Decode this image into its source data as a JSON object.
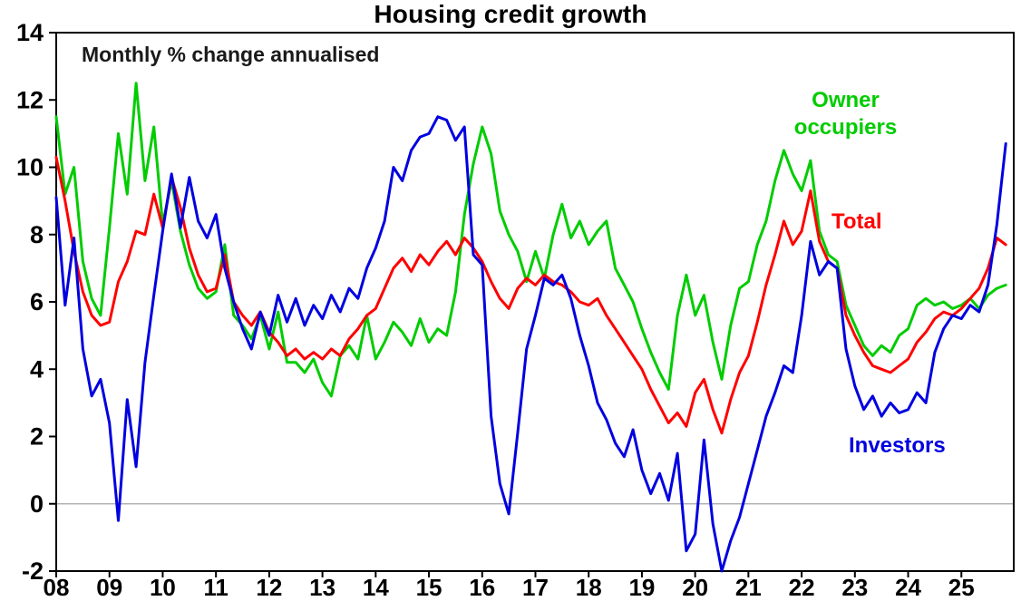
{
  "chart_data": {
    "type": "line",
    "title": "Housing credit growth",
    "subtitle": "Monthly % change annualised",
    "x_axis": {
      "start_year": 2008,
      "points_per_year": 6,
      "tick_labels": [
        "08",
        "09",
        "10",
        "11",
        "12",
        "13",
        "14",
        "15",
        "16",
        "17",
        "18",
        "19",
        "20",
        "21",
        "22",
        "23",
        "24",
        "25"
      ]
    },
    "y_axis": {
      "min": -2,
      "max": 14,
      "tick_step": 2,
      "tick_labels": [
        "-2",
        "0",
        "2",
        "4",
        "6",
        "8",
        "10",
        "12",
        "14"
      ]
    },
    "gridline_value": 0,
    "grid": "zero-line-only",
    "legend_position": "annotations-on-plot",
    "series": [
      {
        "name": "Owner occupiers",
        "color": "#00cc00",
        "values": [
          11.5,
          9.2,
          10.0,
          7.2,
          6.1,
          5.6,
          8.2,
          11.0,
          9.2,
          12.5,
          9.6,
          11.2,
          8.3,
          9.6,
          8.1,
          7.1,
          6.4,
          6.1,
          6.3,
          7.7,
          5.6,
          5.3,
          4.9,
          5.6,
          4.6,
          5.7,
          4.2,
          4.2,
          3.9,
          4.3,
          3.6,
          3.2,
          4.4,
          4.7,
          4.3,
          5.6,
          4.3,
          4.8,
          5.4,
          5.1,
          4.7,
          5.5,
          4.8,
          5.2,
          5.0,
          6.3,
          8.6,
          10.1,
          11.2,
          10.4,
          8.7,
          8.0,
          7.5,
          6.6,
          7.5,
          6.7,
          8.0,
          8.9,
          7.9,
          8.4,
          7.7,
          8.1,
          8.4,
          7.0,
          6.5,
          6.0,
          5.2,
          4.5,
          3.9,
          3.4,
          5.6,
          6.8,
          5.6,
          6.2,
          4.8,
          3.7,
          5.3,
          6.4,
          6.6,
          7.7,
          8.4,
          9.6,
          10.5,
          9.8,
          9.3,
          10.2,
          8.1,
          7.4,
          7.2,
          5.9,
          5.3,
          4.7,
          4.4,
          4.7,
          4.5,
          5.0,
          5.2,
          5.9,
          6.1,
          5.9,
          6.0,
          5.8,
          5.9,
          6.1,
          5.8,
          6.2,
          6.4,
          6.5
        ]
      },
      {
        "name": "Total",
        "color": "#ff0000",
        "values": [
          10.3,
          9.0,
          7.5,
          6.3,
          5.6,
          5.3,
          5.4,
          6.6,
          7.2,
          8.1,
          8.0,
          9.2,
          8.2,
          9.7,
          8.8,
          7.6,
          6.8,
          6.3,
          6.4,
          7.4,
          6.0,
          5.6,
          5.3,
          5.7,
          5.1,
          4.8,
          4.4,
          4.6,
          4.3,
          4.5,
          4.3,
          4.6,
          4.4,
          4.9,
          5.2,
          5.6,
          5.8,
          6.4,
          7.0,
          7.3,
          6.9,
          7.4,
          7.1,
          7.5,
          7.8,
          7.4,
          7.9,
          7.6,
          7.2,
          6.6,
          6.1,
          5.8,
          6.4,
          6.7,
          6.5,
          6.8,
          6.6,
          6.5,
          6.3,
          6.0,
          5.9,
          6.1,
          5.6,
          5.2,
          4.8,
          4.4,
          4.0,
          3.4,
          2.9,
          2.4,
          2.7,
          2.3,
          3.3,
          3.7,
          2.8,
          2.1,
          3.1,
          3.9,
          4.4,
          5.4,
          6.5,
          7.4,
          8.4,
          7.7,
          8.1,
          9.3,
          7.8,
          7.2,
          7.0,
          5.6,
          5.0,
          4.5,
          4.1,
          4.0,
          3.9,
          4.1,
          4.3,
          4.8,
          5.1,
          5.5,
          5.7,
          5.6,
          5.8,
          6.1,
          6.4,
          7.0,
          7.9,
          7.7
        ]
      },
      {
        "name": "Investors",
        "color": "#0000e0",
        "values": [
          9.1,
          5.9,
          7.9,
          4.6,
          3.2,
          3.7,
          2.4,
          -0.5,
          3.1,
          1.1,
          4.2,
          6.2,
          8.1,
          9.8,
          8.2,
          9.7,
          8.4,
          7.9,
          8.6,
          7.0,
          6.0,
          5.2,
          4.6,
          5.7,
          5.0,
          6.2,
          5.4,
          6.1,
          5.3,
          5.9,
          5.5,
          6.2,
          5.7,
          6.4,
          6.1,
          7.0,
          7.6,
          8.4,
          10.0,
          9.6,
          10.5,
          10.9,
          11.0,
          11.5,
          11.4,
          10.8,
          11.2,
          7.4,
          7.1,
          2.6,
          0.6,
          -0.3,
          2.1,
          4.6,
          5.6,
          6.7,
          6.5,
          6.8,
          6.1,
          5.0,
          4.1,
          3.0,
          2.5,
          1.8,
          1.4,
          2.2,
          1.0,
          0.3,
          0.9,
          0.1,
          1.5,
          -1.4,
          -0.9,
          1.9,
          -0.6,
          -2.0,
          -1.1,
          -0.4,
          0.6,
          1.6,
          2.6,
          3.3,
          4.1,
          3.9,
          5.6,
          7.8,
          6.8,
          7.2,
          7.0,
          4.6,
          3.5,
          2.8,
          3.2,
          2.6,
          3.0,
          2.7,
          2.8,
          3.3,
          3.0,
          4.5,
          5.2,
          5.6,
          5.5,
          5.9,
          5.7,
          6.5,
          8.3,
          10.7
        ]
      }
    ],
    "annotations": [
      {
        "lines": [
          "Owner",
          "occupiers"
        ],
        "color": "#00cc00"
      },
      {
        "lines": [
          "Total"
        ],
        "color": "#ff0000"
      },
      {
        "lines": [
          "Investors"
        ],
        "color": "#0000e0"
      }
    ]
  }
}
